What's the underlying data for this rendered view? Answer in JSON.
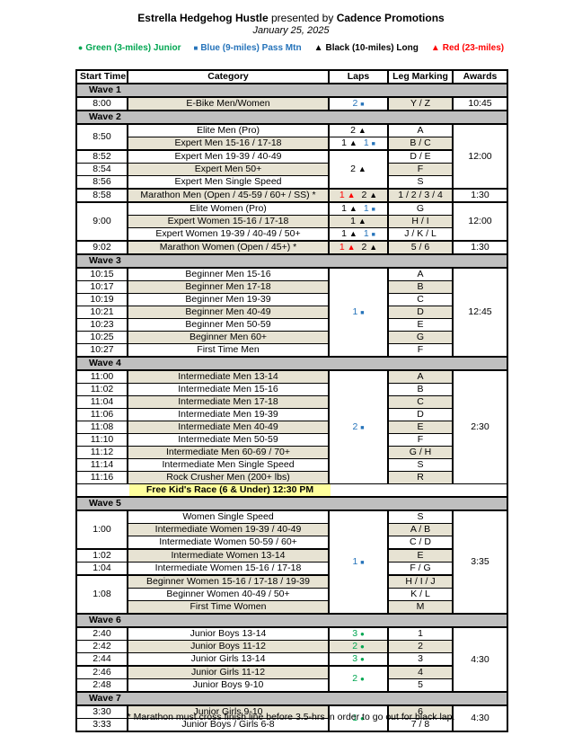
{
  "title": {
    "event": "Estrella Hedgehog Hustle",
    "middle": " presented by ",
    "promoter": "Cadence Promotions",
    "date": "January 25, 2025"
  },
  "legend": [
    {
      "marker": "●",
      "label": "Green (3-miles) Junior",
      "color": "#00A651"
    },
    {
      "marker": "■",
      "label": "Blue (9-miles) Pass Mtn",
      "color": "#2573BA"
    },
    {
      "marker": "▲",
      "label": "Black (10-miles) Long",
      "color": "#000000"
    },
    {
      "marker": "▲",
      "label": "Red (23-miles)",
      "color": "#FF0000"
    }
  ],
  "colors": {
    "beige_row": "#E7E3D3",
    "wave_band": "#BFBFBF",
    "kids_highlight": "#FFFF9C",
    "blue": "#2573BA",
    "green": "#00A651",
    "red": "#FF0000",
    "black": "#000000"
  },
  "table": {
    "columns": [
      "Start Time",
      "Category",
      "Laps",
      "Leg Marking",
      "Awards"
    ],
    "waves": [
      {
        "label": "Wave 1",
        "rows": [
          {
            "time": {
              "t": "8:00"
            },
            "cat": {
              "t": "E-Bike Men/Women",
              "bg": "b"
            },
            "laps": {
              "segs": [
                {
                  "n": "2",
                  "m": "sq",
                  "c": "blue"
                }
              ]
            },
            "leg": {
              "t": "Y / Z",
              "bg": "b"
            },
            "awards": {
              "t": "10:45"
            }
          }
        ]
      },
      {
        "label": "Wave 2",
        "rows": [
          {
            "time": {
              "t": "8:50",
              "rs": 2
            },
            "cat": {
              "t": "Elite Men (Pro)"
            },
            "laps": {
              "segs": [
                {
                  "n": "2",
                  "m": "tri",
                  "c": "black"
                }
              ]
            },
            "leg": {
              "t": "A"
            },
            "awards": {
              "t": "12:00",
              "rs": 5
            }
          },
          {
            "cat": {
              "t": "Expert Men 15-16 / 17-18",
              "bg": "b"
            },
            "laps": {
              "segs": [
                {
                  "n": "1",
                  "m": "tri",
                  "c": "black"
                },
                {
                  "n": "1",
                  "m": "sq",
                  "c": "blue"
                }
              ]
            },
            "leg": {
              "t": "B / C",
              "bg": "b"
            }
          },
          {
            "grp": true,
            "time": {
              "t": "8:52"
            },
            "cat": {
              "t": "Expert Men 19-39 / 40-49"
            },
            "laps": {
              "segs": [
                {
                  "n": "2",
                  "m": "tri",
                  "c": "black"
                }
              ],
              "rs": 3
            },
            "leg": {
              "t": "D / E"
            }
          },
          {
            "time": {
              "t": "8:54"
            },
            "cat": {
              "t": "Expert Men 50+",
              "bg": "b"
            },
            "leg": {
              "t": "F",
              "bg": "b"
            }
          },
          {
            "time": {
              "t": "8:56"
            },
            "cat": {
              "t": "Expert Men Single Speed"
            },
            "leg": {
              "t": "S"
            }
          },
          {
            "grp": true,
            "time": {
              "t": "8:58"
            },
            "cat": {
              "t": "Marathon Men (Open / 45-59 / 60+ / SS) *",
              "bg": "b"
            },
            "laps": {
              "segs": [
                {
                  "n": "1",
                  "m": "tri",
                  "c": "red"
                },
                {
                  "n": "2",
                  "m": "tri",
                  "c": "black"
                }
              ],
              "bg": "b"
            },
            "leg": {
              "t": "1 / 2 / 3 / 4",
              "bg": "b"
            },
            "awards": {
              "t": "1:30"
            }
          },
          {
            "grp": true,
            "time": {
              "t": "9:00",
              "rs": 3
            },
            "cat": {
              "t": "Elite Women (Pro)"
            },
            "laps": {
              "segs": [
                {
                  "n": "1",
                  "m": "tri",
                  "c": "black"
                },
                {
                  "n": "1",
                  "m": "sq",
                  "c": "blue"
                }
              ]
            },
            "leg": {
              "t": "G"
            },
            "awards": {
              "t": "12:00",
              "rs": 3
            }
          },
          {
            "cat": {
              "t": "Expert Women 15-16 / 17-18",
              "bg": "b"
            },
            "laps": {
              "segs": [
                {
                  "n": "1",
                  "m": "tri",
                  "c": "black"
                }
              ],
              "bg": "b"
            },
            "leg": {
              "t": "H / I",
              "bg": "b"
            }
          },
          {
            "cat": {
              "t": "Expert Women 19-39 / 40-49 / 50+"
            },
            "laps": {
              "segs": [
                {
                  "n": "1",
                  "m": "tri",
                  "c": "black"
                },
                {
                  "n": "1",
                  "m": "sq",
                  "c": "blue"
                }
              ]
            },
            "leg": {
              "t": "J / K / L"
            }
          },
          {
            "grp": true,
            "time": {
              "t": "9:02"
            },
            "cat": {
              "t": "Marathon Women (Open / 45+) *",
              "bg": "b"
            },
            "laps": {
              "segs": [
                {
                  "n": "1",
                  "m": "tri",
                  "c": "red"
                },
                {
                  "n": "2",
                  "m": "tri",
                  "c": "black"
                }
              ],
              "bg": "b"
            },
            "leg": {
              "t": "5 / 6",
              "bg": "b"
            },
            "awards": {
              "t": "1:30"
            }
          }
        ]
      },
      {
        "label": "Wave 3",
        "rows": [
          {
            "time": {
              "t": "10:15"
            },
            "cat": {
              "t": "Beginner Men 15-16"
            },
            "laps": {
              "segs": [
                {
                  "n": "1",
                  "m": "sq",
                  "c": "blue"
                }
              ],
              "rs": 7
            },
            "leg": {
              "t": "A"
            },
            "awards": {
              "t": "12:45",
              "rs": 7
            }
          },
          {
            "time": {
              "t": "10:17"
            },
            "cat": {
              "t": "Beginner Men 17-18",
              "bg": "b"
            },
            "leg": {
              "t": "B",
              "bg": "b"
            }
          },
          {
            "time": {
              "t": "10:19"
            },
            "cat": {
              "t": "Beginner Men 19-39"
            },
            "leg": {
              "t": "C"
            }
          },
          {
            "time": {
              "t": "10:21"
            },
            "cat": {
              "t": "Beginner Men 40-49",
              "bg": "b"
            },
            "leg": {
              "t": "D",
              "bg": "b"
            }
          },
          {
            "time": {
              "t": "10:23"
            },
            "cat": {
              "t": "Beginner Men 50-59"
            },
            "leg": {
              "t": "E"
            }
          },
          {
            "time": {
              "t": "10:25"
            },
            "cat": {
              "t": "Beginner Men 60+",
              "bg": "b"
            },
            "leg": {
              "t": "G",
              "bg": "b"
            }
          },
          {
            "time": {
              "t": "10:27"
            },
            "cat": {
              "t": "First Time Men"
            },
            "leg": {
              "t": "F"
            }
          }
        ]
      },
      {
        "label": "Wave 4",
        "rows": [
          {
            "time": {
              "t": "11:00"
            },
            "cat": {
              "t": "Intermediate Men 13-14",
              "bg": "b"
            },
            "laps": {
              "segs": [
                {
                  "n": "2",
                  "m": "sq",
                  "c": "blue"
                }
              ],
              "rs": 9
            },
            "leg": {
              "t": "A",
              "bg": "b"
            },
            "awards": {
              "t": "2:30",
              "rs": 9
            }
          },
          {
            "time": {
              "t": "11:02"
            },
            "cat": {
              "t": "Intermediate Men 15-16"
            },
            "leg": {
              "t": "B"
            }
          },
          {
            "time": {
              "t": "11:04"
            },
            "cat": {
              "t": "Intermediate Men 17-18",
              "bg": "b"
            },
            "leg": {
              "t": "C",
              "bg": "b"
            }
          },
          {
            "time": {
              "t": "11:06"
            },
            "cat": {
              "t": "Intermediate Men 19-39"
            },
            "leg": {
              "t": "D"
            }
          },
          {
            "time": {
              "t": "11:08"
            },
            "cat": {
              "t": "Intermediate Men 40-49",
              "bg": "b"
            },
            "leg": {
              "t": "E",
              "bg": "b"
            }
          },
          {
            "time": {
              "t": "11:10"
            },
            "cat": {
              "t": "Intermediate Men 50-59"
            },
            "leg": {
              "t": "F"
            }
          },
          {
            "time": {
              "t": "11:12"
            },
            "cat": {
              "t": "Intermediate Men 60-69 / 70+",
              "bg": "b"
            },
            "leg": {
              "t": "G / H",
              "bg": "b"
            }
          },
          {
            "time": {
              "t": "11:14"
            },
            "cat": {
              "t": "Intermediate Men Single Speed"
            },
            "leg": {
              "t": "S"
            }
          },
          {
            "time": {
              "t": "11:16"
            },
            "cat": {
              "t": "Rock Crusher Men (200+ lbs)",
              "bg": "b"
            },
            "leg": {
              "t": "R",
              "bg": "b"
            }
          },
          {
            "kids": true,
            "text": "Free Kid's Race (6 & Under) 12:30 PM"
          }
        ]
      },
      {
        "label": "Wave 5",
        "rows": [
          {
            "time": {
              "t": "1:00",
              "rs": 3
            },
            "cat": {
              "t": "Women Single Speed"
            },
            "laps": {
              "segs": [
                {
                  "n": "1",
                  "m": "sq",
                  "c": "blue"
                }
              ],
              "rs": 8
            },
            "leg": {
              "t": "S"
            },
            "awards": {
              "t": "3:35",
              "rs": 8
            }
          },
          {
            "cat": {
              "t": "Intermediate Women 19-39 / 40-49",
              "bg": "b"
            },
            "leg": {
              "t": "A / B",
              "bg": "b"
            }
          },
          {
            "cat": {
              "t": "Intermediate Women 50-59 / 60+"
            },
            "leg": {
              "t": "C / D"
            }
          },
          {
            "grp": true,
            "time": {
              "t": "1:02"
            },
            "cat": {
              "t": "Intermediate Women 13-14",
              "bg": "b"
            },
            "leg": {
              "t": "E",
              "bg": "b"
            }
          },
          {
            "time": {
              "t": "1:04"
            },
            "cat": {
              "t": "Intermediate Women 15-16 / 17-18"
            },
            "leg": {
              "t": "F / G"
            }
          },
          {
            "grp": true,
            "time": {
              "t": "1:08",
              "rs": 3
            },
            "cat": {
              "t": "Beginner Women 15-16 / 17-18 / 19-39",
              "bg": "b"
            },
            "leg": {
              "t": "H / I / J",
              "bg": "b"
            }
          },
          {
            "cat": {
              "t": "Beginner Women 40-49 / 50+"
            },
            "leg": {
              "t": "K / L"
            }
          },
          {
            "cat": {
              "t": "First Time Women",
              "bg": "b"
            },
            "leg": {
              "t": "M",
              "bg": "b"
            }
          }
        ]
      },
      {
        "label": "Wave 6",
        "rows": [
          {
            "time": {
              "t": "2:40"
            },
            "cat": {
              "t": "Junior Boys 13-14"
            },
            "laps": {
              "segs": [
                {
                  "n": "3",
                  "m": "dot",
                  "c": "green"
                }
              ]
            },
            "leg": {
              "t": "1"
            },
            "awards": {
              "t": "4:30",
              "rs": 5
            }
          },
          {
            "time": {
              "t": "2:42"
            },
            "cat": {
              "t": "Junior Boys 11-12",
              "bg": "b"
            },
            "laps": {
              "segs": [
                {
                  "n": "2",
                  "m": "dot",
                  "c": "green"
                }
              ],
              "bg": "b"
            },
            "leg": {
              "t": "2",
              "bg": "b"
            }
          },
          {
            "time": {
              "t": "2:44"
            },
            "cat": {
              "t": "Junior Girls 13-14"
            },
            "laps": {
              "segs": [
                {
                  "n": "3",
                  "m": "dot",
                  "c": "green"
                }
              ]
            },
            "leg": {
              "t": "3"
            }
          },
          {
            "grp": true,
            "time": {
              "t": "2:46"
            },
            "cat": {
              "t": "Junior Girls 11-12",
              "bg": "b"
            },
            "laps": {
              "segs": [
                {
                  "n": "2",
                  "m": "dot",
                  "c": "green"
                }
              ],
              "rs": 2
            },
            "leg": {
              "t": "4",
              "bg": "b"
            }
          },
          {
            "time": {
              "t": "2:48"
            },
            "cat": {
              "t": "Junior Boys 9-10"
            },
            "leg": {
              "t": "5"
            }
          }
        ]
      },
      {
        "label": "Wave 7",
        "rows": [
          {
            "time": {
              "t": "3:30"
            },
            "cat": {
              "t": "Junior Girls 9-10",
              "bg": "b"
            },
            "laps": {
              "segs": [
                {
                  "n": "1",
                  "m": "dot",
                  "c": "green"
                }
              ],
              "rs": 2
            },
            "leg": {
              "t": "6",
              "bg": "b"
            },
            "awards": {
              "t": "4:30",
              "rs": 2
            }
          },
          {
            "time": {
              "t": "3:33"
            },
            "cat": {
              "t": "Junior Boys / Girls 6-8"
            },
            "leg": {
              "t": "7 / 8"
            }
          }
        ]
      }
    ]
  },
  "footnote": "* Marathon must cross finish line before 3.5-hrs in order to go out for black lap."
}
